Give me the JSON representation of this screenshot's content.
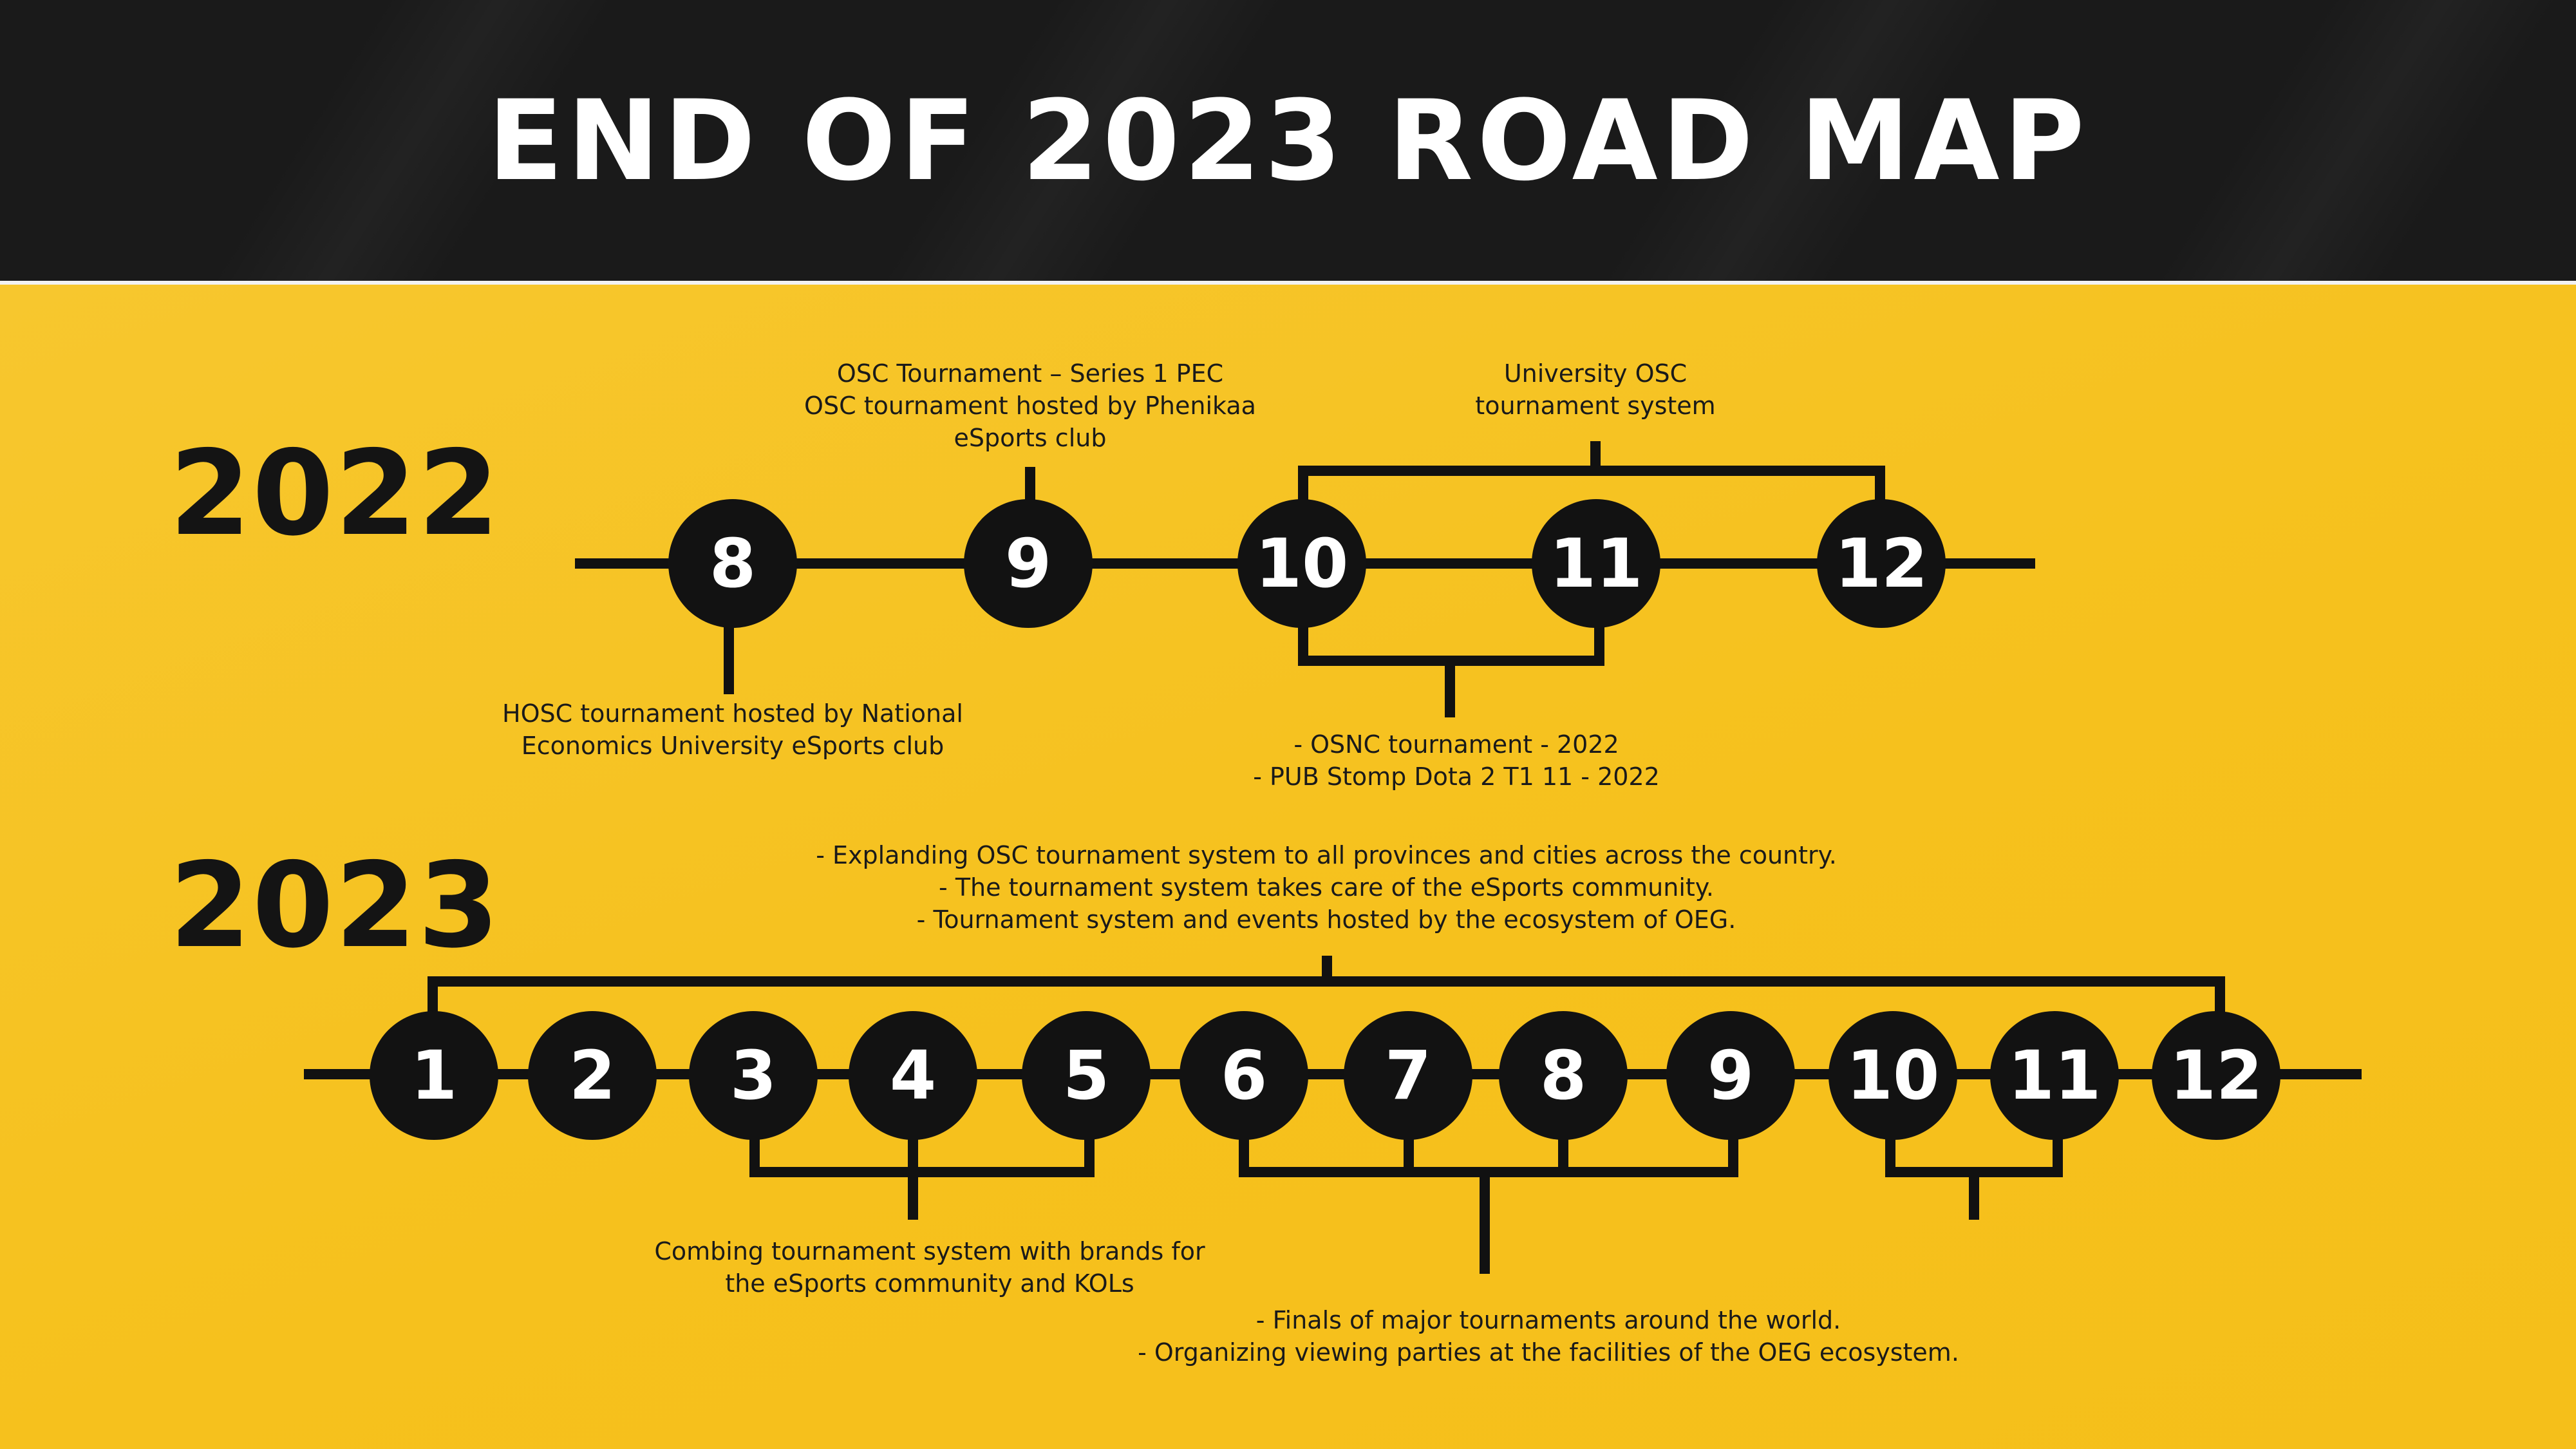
{
  "header": {
    "title": "END OF 2023 ROAD MAP"
  },
  "years": {
    "y2022": "2022",
    "y2023": "2023"
  },
  "timeline_2022": {
    "months": [
      "8",
      "9",
      "10",
      "11",
      "12"
    ],
    "captions": {
      "osc_series": [
        "OSC Tournament – Series 1 PEC",
        "OSC tournament hosted by Phenikaa",
        "eSports club"
      ],
      "university": [
        "University OSC",
        "tournament system"
      ],
      "hosc": [
        "HOSC tournament hosted by National",
        "Economics University eSports club"
      ],
      "osnc": [
        "- OSNC tournament - 2022",
        "- PUB Stomp Dota 2 T1 11 - 2022"
      ]
    }
  },
  "timeline_2023": {
    "months": [
      "1",
      "2",
      "3",
      "4",
      "5",
      "6",
      "7",
      "8",
      "9",
      "10",
      "11",
      "12"
    ],
    "captions": {
      "expanding": [
        "- Explanding OSC tournament system to all provinces and cities across the country.",
        "- The tournament system takes care of the eSports community.",
        "-  Tournament system and events hosted by the ecosystem of OEG."
      ],
      "combining": [
        "Combing tournament system with brands for",
        "the eSports community and KOLs"
      ],
      "finals": [
        "- Finals of major tournaments around the world.",
        "- Organizing viewing parties at the facilities of the OEG ecosystem."
      ]
    }
  },
  "colors": {
    "background": "#f6c11d",
    "header": "#1a1a1a",
    "node": "#121212",
    "node_text": "#ffffff",
    "line": "#111111"
  }
}
